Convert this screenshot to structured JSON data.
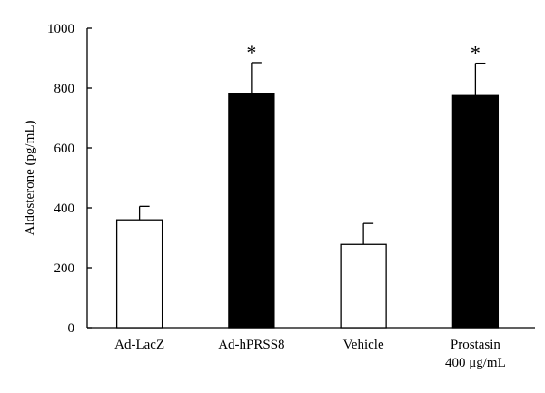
{
  "chart_data": {
    "type": "bar",
    "title": "",
    "xlabel": "",
    "ylabel": "Aldosterone (pg/mL)",
    "ylim": [
      0,
      1000
    ],
    "yticks": [
      "0",
      "200",
      "400",
      "600",
      "800",
      "1000"
    ],
    "grid": false,
    "categories": [
      {
        "label": "Ad-LacZ",
        "label2": ""
      },
      {
        "label": "Ad-hPRSS8",
        "label2": ""
      },
      {
        "label": "Vehicle",
        "label2": ""
      },
      {
        "label": "Prostasin",
        "label2": "400 μg/mL"
      }
    ],
    "values": [
      360,
      780,
      278,
      775
    ],
    "errors": [
      45,
      105,
      70,
      108
    ],
    "bar_fill": [
      "#ffffff",
      "#000000",
      "#ffffff",
      "#000000"
    ],
    "significance": [
      "",
      "*",
      "",
      "*"
    ]
  }
}
